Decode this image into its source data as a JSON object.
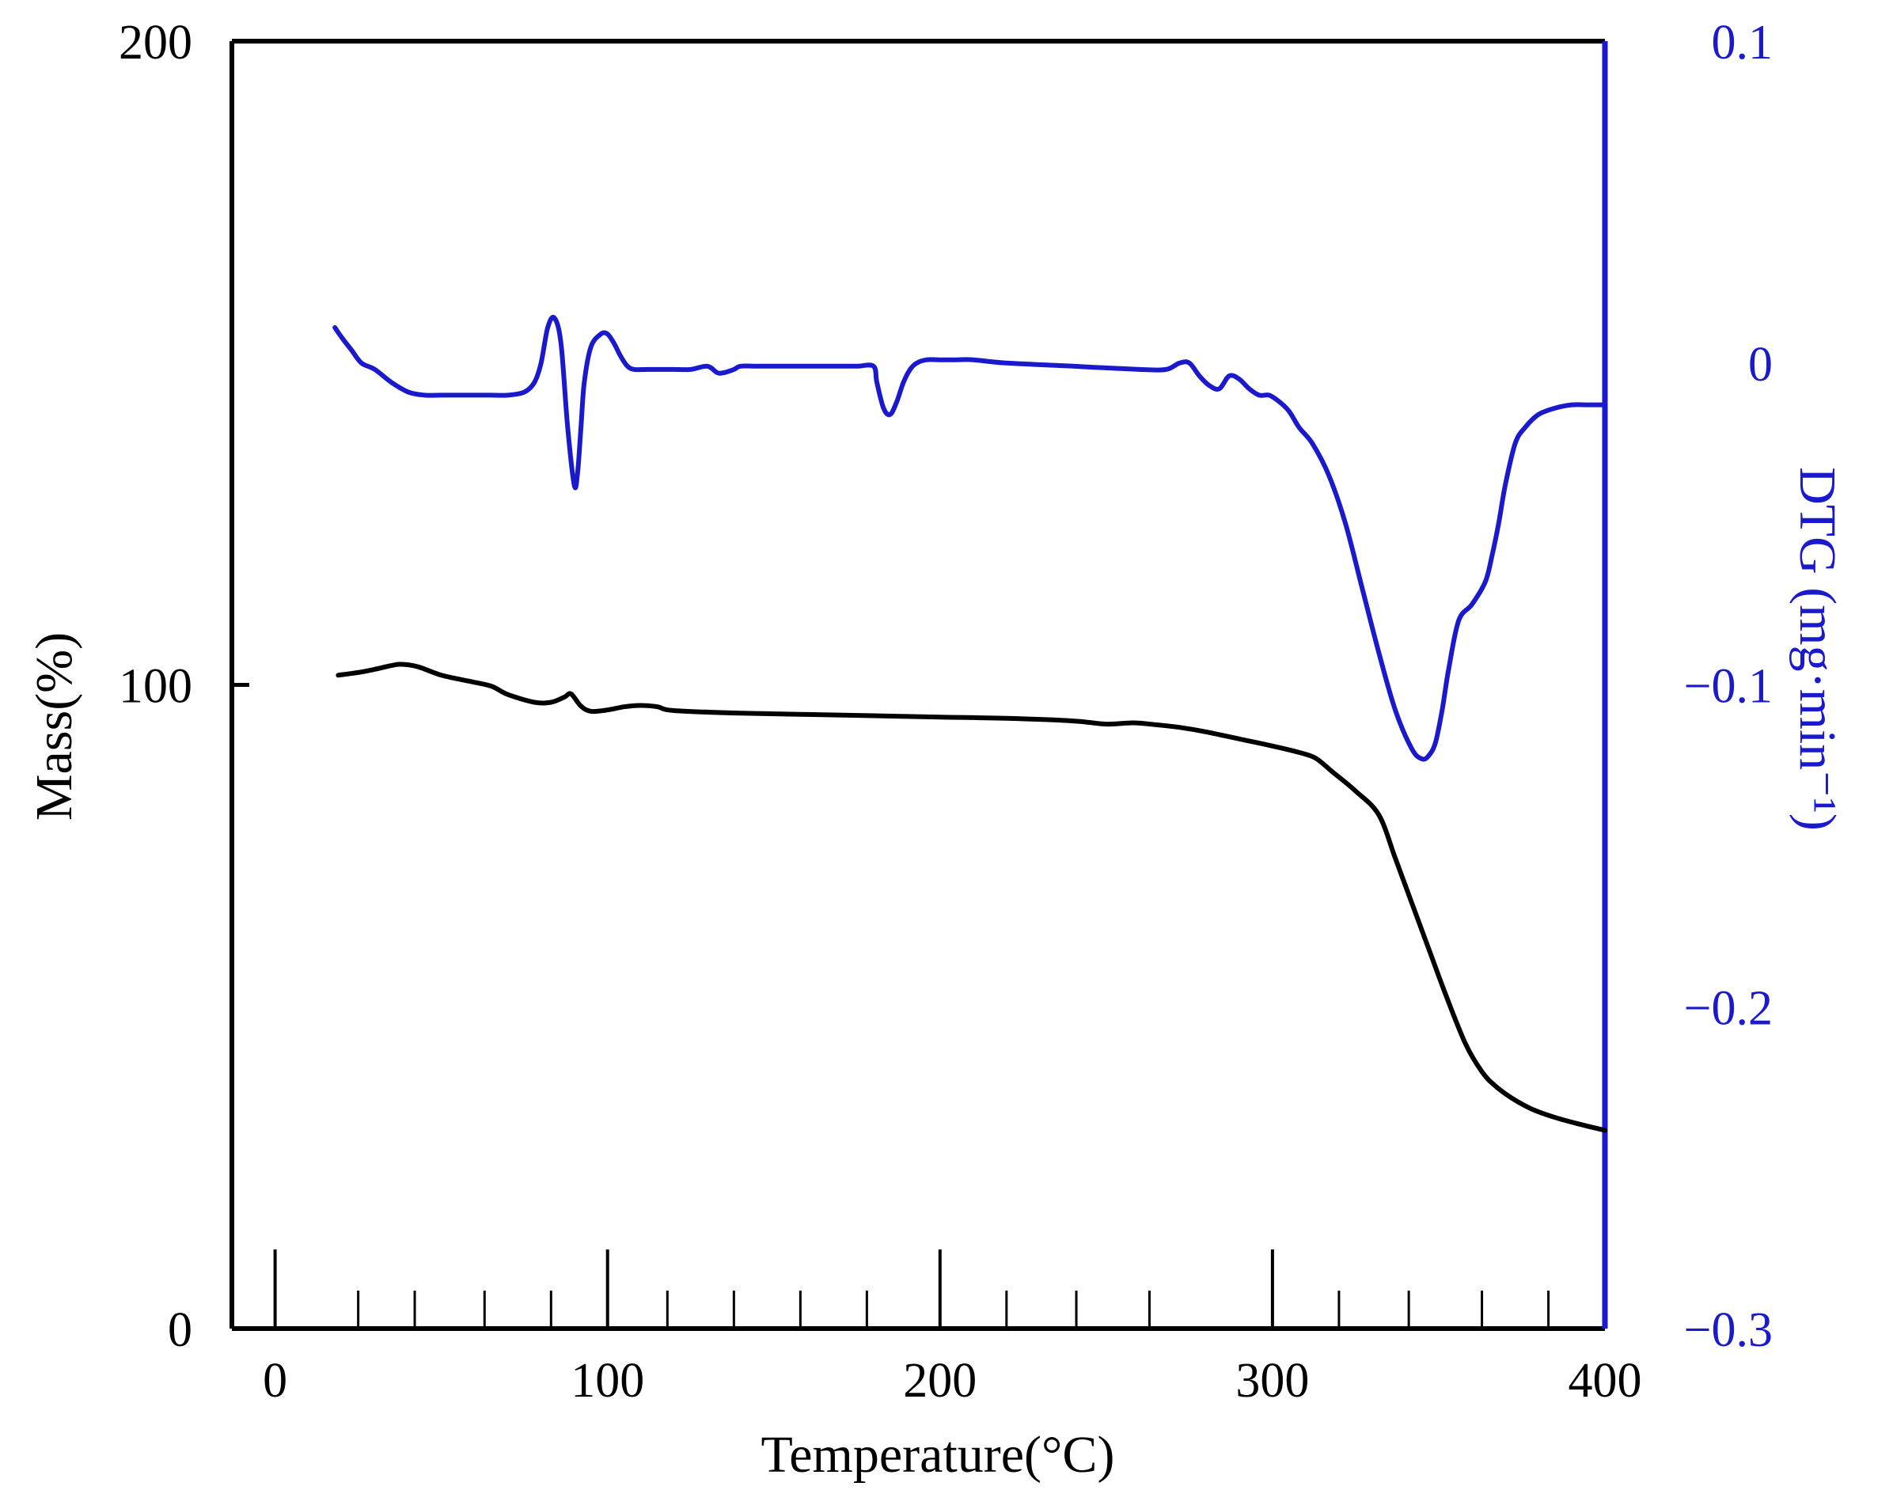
{
  "chart_data": {
    "type": "line",
    "xlabel": "Temperature(°C)",
    "ylabel_left": "Mass(%)",
    "ylabel_right": "DTG (mg·min⁻¹)",
    "xlim": [
      -13,
      400
    ],
    "ylim_left": [
      0,
      200
    ],
    "ylim_right": [
      -0.3,
      0.1
    ],
    "x_ticks": [
      0,
      100,
      200,
      300,
      400
    ],
    "x_tick_labels": [
      "0",
      "100",
      "200",
      "300",
      "400"
    ],
    "y_left_ticks": [
      0,
      100,
      200
    ],
    "y_left_tick_labels": [
      "0",
      "100",
      "200"
    ],
    "y_right_ticks": [
      0.1,
      0,
      -0.1,
      -0.2,
      -0.3
    ],
    "y_right_tick_labels": [
      "0.1",
      "0",
      "−0.1",
      "−0.2",
      "−0.3"
    ],
    "grid": false,
    "colors": {
      "mass": "#000000",
      "dtg": "#1a1acc",
      "right_axis": "#1a1acc"
    },
    "series": [
      {
        "name": "Mass",
        "axis": "left",
        "color": "#000000",
        "x": [
          19,
          27,
          35,
          38,
          43,
          50,
          58,
          65,
          70,
          78,
          83,
          87,
          89,
          92,
          95,
          100,
          105,
          110,
          115,
          120,
          140,
          160,
          180,
          200,
          220,
          240,
          250,
          258,
          265,
          272,
          280,
          290,
          300,
          308,
          313,
          318,
          325,
          332,
          337,
          342,
          347,
          352,
          358,
          363,
          367,
          372,
          378,
          385,
          392,
          400
        ],
        "y": [
          101.5,
          102.1,
          103,
          103.2,
          102.8,
          101.5,
          100.6,
          99.8,
          98.5,
          97.3,
          97.3,
          98.1,
          98.6,
          96.7,
          95.9,
          96.1,
          96.6,
          96.8,
          96.6,
          96.0,
          95.6,
          95.4,
          95.2,
          95.0,
          94.8,
          94.4,
          93.9,
          94.1,
          93.8,
          93.4,
          92.7,
          91.6,
          90.5,
          89.5,
          88.6,
          86.5,
          83.5,
          79.8,
          73,
          66,
          59,
          52,
          44.3,
          39.9,
          37.7,
          35.8,
          34.1,
          32.8,
          31.8,
          30.8
        ]
      },
      {
        "name": "DTG",
        "axis": "right",
        "color": "#1a1acc",
        "x": [
          18,
          20,
          23,
          26,
          30,
          35,
          40,
          45,
          50,
          55,
          60,
          65,
          70,
          75,
          78,
          80,
          82,
          84,
          86,
          88,
          90,
          91,
          92,
          93,
          95,
          98,
          100,
          102,
          104,
          106,
          108,
          112,
          116,
          120,
          125,
          130,
          133,
          135,
          138,
          140,
          145,
          150,
          160,
          170,
          175,
          180,
          181,
          183,
          185,
          187,
          189,
          191,
          193,
          196,
          200,
          205,
          210,
          220,
          240,
          260,
          268,
          272,
          275,
          278,
          281,
          284,
          287,
          290,
          293,
          296,
          299,
          302,
          305,
          308,
          312,
          317,
          322,
          327,
          332,
          337,
          342,
          345,
          347,
          349,
          351,
          353,
          356,
          360,
          364,
          366,
          368,
          370,
          373,
          376,
          380,
          385,
          390,
          395,
          400
        ],
        "y": [
          0.011,
          0.008,
          0.004,
          0.0,
          -0.002,
          -0.006,
          -0.009,
          -0.01,
          -0.01,
          -0.01,
          -0.01,
          -0.01,
          -0.01,
          -0.009,
          -0.006,
          0.0,
          0.011,
          0.014,
          0.006,
          -0.02,
          -0.038,
          -0.034,
          -0.02,
          -0.006,
          0.005,
          0.009,
          0.009,
          0.006,
          0.002,
          -0.001,
          -0.002,
          -0.002,
          -0.002,
          -0.002,
          -0.002,
          -0.001,
          -0.003,
          -0.003,
          -0.002,
          -0.001,
          -0.001,
          -0.001,
          -0.001,
          -0.001,
          -0.001,
          -0.001,
          -0.006,
          -0.014,
          -0.016,
          -0.012,
          -0.006,
          -0.002,
          0.0,
          0.001,
          0.001,
          0.001,
          0.001,
          0.0,
          -0.001,
          -0.002,
          -0.002,
          0.0,
          0.0,
          -0.004,
          -0.007,
          -0.008,
          -0.004,
          -0.005,
          -0.008,
          -0.01,
          -0.01,
          -0.012,
          -0.015,
          -0.02,
          -0.025,
          -0.035,
          -0.05,
          -0.07,
          -0.09,
          -0.108,
          -0.12,
          -0.123,
          -0.122,
          -0.118,
          -0.108,
          -0.095,
          -0.08,
          -0.075,
          -0.068,
          -0.06,
          -0.05,
          -0.038,
          -0.025,
          -0.02,
          -0.016,
          -0.014,
          -0.013,
          -0.013,
          -0.013
        ]
      }
    ]
  }
}
